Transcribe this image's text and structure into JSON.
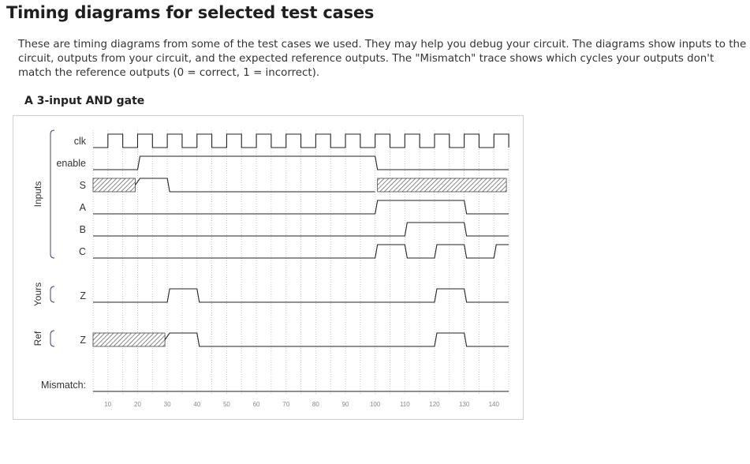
{
  "page": {
    "title": "Timing diagrams for selected test cases",
    "description": "These are timing diagrams from some of the test cases we used. They may help you debug your circuit. The diagrams show inputs to the circuit, outputs from your circuit, and the expected reference outputs. The \"Mismatch\" trace shows which cycles your outputs don't match the reference outputs (0 = correct, 1 = incorrect).",
    "subtitle": "A 3-input AND gate"
  },
  "diagram": {
    "groups": {
      "inputs": "Inputs",
      "yours": "Yours",
      "ref": "Ref"
    },
    "mismatch_label": "Mismatch:",
    "time_ticks": [
      10,
      20,
      30,
      40,
      50,
      60,
      70,
      80,
      90,
      100,
      110,
      120,
      130,
      140
    ],
    "t_start": 5,
    "t_end": 145,
    "clock_period": 10,
    "signals": [
      {
        "name": "clk",
        "kind": "clock"
      },
      {
        "name": "enable",
        "kind": "digital",
        "segments": [
          [
            5,
            20,
            0
          ],
          [
            20,
            100,
            1
          ],
          [
            100,
            145,
            0
          ]
        ]
      },
      {
        "name": "S",
        "kind": "digital",
        "segments": [
          [
            5,
            20,
            "x"
          ],
          [
            20,
            30,
            1
          ],
          [
            30,
            100,
            0
          ],
          [
            100,
            145,
            "x"
          ]
        ]
      },
      {
        "name": "A",
        "kind": "digital",
        "segments": [
          [
            5,
            100,
            0
          ],
          [
            100,
            130,
            1
          ],
          [
            130,
            145,
            0
          ]
        ]
      },
      {
        "name": "B",
        "kind": "digital",
        "segments": [
          [
            5,
            110,
            0
          ],
          [
            110,
            130,
            1
          ],
          [
            130,
            145,
            0
          ]
        ]
      },
      {
        "name": "C",
        "kind": "digital",
        "segments": [
          [
            5,
            100,
            0
          ],
          [
            100,
            110,
            1
          ],
          [
            110,
            120,
            0
          ],
          [
            120,
            130,
            1
          ],
          [
            130,
            140,
            0
          ],
          [
            140,
            145,
            1
          ]
        ]
      },
      {
        "name": "Z",
        "kind": "digital",
        "group": "yours",
        "segments": [
          [
            5,
            30,
            0
          ],
          [
            30,
            40,
            1
          ],
          [
            40,
            120,
            0
          ],
          [
            120,
            130,
            1
          ],
          [
            130,
            145,
            0
          ]
        ]
      },
      {
        "name": "Z",
        "kind": "digital",
        "group": "ref",
        "segments": [
          [
            5,
            30,
            "x"
          ],
          [
            30,
            40,
            1
          ],
          [
            40,
            120,
            0
          ],
          [
            120,
            130,
            1
          ],
          [
            130,
            145,
            0
          ]
        ]
      },
      {
        "name": "Mismatch:",
        "kind": "digital",
        "group": "mismatch",
        "segments": [
          [
            5,
            145,
            0
          ]
        ]
      }
    ]
  }
}
